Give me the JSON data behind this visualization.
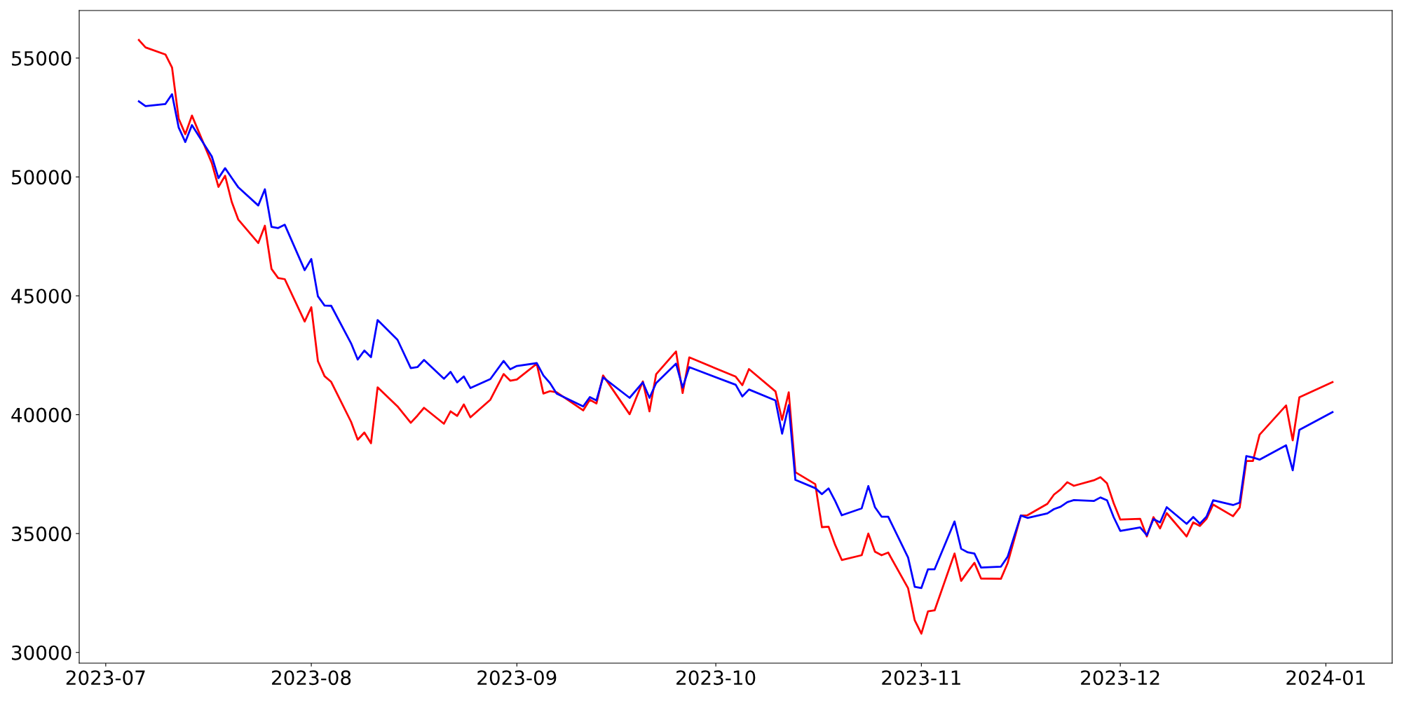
{
  "chart_data": {
    "type": "line",
    "x": [
      "2023-07-06",
      "2023-07-07",
      "2023-07-10",
      "2023-07-11",
      "2023-07-12",
      "2023-07-13",
      "2023-07-14",
      "2023-07-17",
      "2023-07-18",
      "2023-07-19",
      "2023-07-20",
      "2023-07-21",
      "2023-07-24",
      "2023-07-25",
      "2023-07-26",
      "2023-07-27",
      "2023-07-28",
      "2023-07-31",
      "2023-08-01",
      "2023-08-02",
      "2023-08-03",
      "2023-08-04",
      "2023-08-07",
      "2023-08-08",
      "2023-08-09",
      "2023-08-10",
      "2023-08-11",
      "2023-08-14",
      "2023-08-16",
      "2023-08-17",
      "2023-08-18",
      "2023-08-21",
      "2023-08-22",
      "2023-08-23",
      "2023-08-24",
      "2023-08-25",
      "2023-08-28",
      "2023-08-30",
      "2023-08-31",
      "2023-09-01",
      "2023-09-04",
      "2023-09-05",
      "2023-09-06",
      "2023-09-07",
      "2023-09-11",
      "2023-09-12",
      "2023-09-13",
      "2023-09-14",
      "2023-09-18",
      "2023-09-20",
      "2023-09-21",
      "2023-09-22",
      "2023-09-25",
      "2023-09-26",
      "2023-09-27",
      "2023-10-04",
      "2023-10-05",
      "2023-10-06",
      "2023-10-10",
      "2023-10-11",
      "2023-10-12",
      "2023-10-13",
      "2023-10-16",
      "2023-10-17",
      "2023-10-18",
      "2023-10-19",
      "2023-10-20",
      "2023-10-23",
      "2023-10-24",
      "2023-10-25",
      "2023-10-26",
      "2023-10-27",
      "2023-10-30",
      "2023-10-31",
      "2023-11-01",
      "2023-11-02",
      "2023-11-03",
      "2023-11-06",
      "2023-11-07",
      "2023-11-08",
      "2023-11-09",
      "2023-11-10",
      "2023-11-13",
      "2023-11-14",
      "2023-11-16",
      "2023-11-17",
      "2023-11-20",
      "2023-11-21",
      "2023-11-22",
      "2023-11-23",
      "2023-11-24",
      "2023-11-27",
      "2023-11-28",
      "2023-11-29",
      "2023-11-30",
      "2023-12-01",
      "2023-12-04",
      "2023-12-05",
      "2023-12-06",
      "2023-12-07",
      "2023-12-08",
      "2023-12-11",
      "2023-12-12",
      "2023-12-13",
      "2023-12-14",
      "2023-12-15",
      "2023-12-18",
      "2023-12-19",
      "2023-12-20",
      "2023-12-21",
      "2023-12-22",
      "2023-12-26",
      "2023-12-27",
      "2023-12-28",
      "2024-01-02"
    ],
    "series": [
      {
        "color": "#ff0000",
        "values": [
          55760,
          55450,
          55150,
          54600,
          52450,
          51800,
          52580,
          50580,
          49580,
          50050,
          48950,
          48200,
          47220,
          47950,
          46130,
          45750,
          45700,
          43920,
          44520,
          42250,
          41620,
          41380,
          39700,
          38950,
          39250,
          38800,
          41150,
          40350,
          39660,
          39960,
          40290,
          39620,
          40140,
          39950,
          40430,
          39890,
          40630,
          41710,
          41430,
          41480,
          42140,
          40890,
          40990,
          40940,
          40180,
          40630,
          40470,
          41650,
          40020,
          41400,
          40140,
          41700,
          42660,
          40910,
          42410,
          41600,
          41240,
          41920,
          40980,
          39780,
          40940,
          37580,
          37080,
          35270,
          35290,
          34520,
          33890,
          34090,
          35000,
          34240,
          34090,
          34200,
          32700,
          31350,
          30790,
          31730,
          31770,
          34160,
          33010,
          33400,
          33770,
          33110,
          33100,
          33750,
          35760,
          35770,
          36250,
          36640,
          36860,
          37160,
          37010,
          37240,
          37370,
          37110,
          36280,
          35590,
          35620,
          34880,
          35690,
          35220,
          35860,
          34880,
          35470,
          35320,
          35620,
          36220,
          35730,
          36090,
          38050,
          38050,
          39160,
          40390,
          38920,
          40730,
          41370
        ]
      },
      {
        "color": "#0000ff",
        "values": [
          53180,
          52980,
          53070,
          53480,
          52080,
          51470,
          52180,
          50860,
          49950,
          50370,
          49960,
          49560,
          48800,
          49480,
          47900,
          47850,
          47990,
          46080,
          46550,
          44980,
          44590,
          44580,
          43000,
          42320,
          42700,
          42420,
          43980,
          43150,
          41960,
          42000,
          42300,
          41510,
          41800,
          41360,
          41610,
          41120,
          41500,
          42260,
          41910,
          42050,
          42170,
          41650,
          41330,
          40890,
          40350,
          40740,
          40600,
          41570,
          40710,
          41360,
          40710,
          41330,
          42150,
          41140,
          42000,
          41260,
          40770,
          41060,
          40600,
          39200,
          40400,
          37260,
          36910,
          36660,
          36900,
          36370,
          35770,
          36060,
          37000,
          36110,
          35710,
          35710,
          33990,
          32760,
          32710,
          33500,
          33500,
          35510,
          34360,
          34210,
          34160,
          33570,
          33610,
          34020,
          35760,
          35660,
          35850,
          36030,
          36130,
          36320,
          36410,
          36370,
          36520,
          36400,
          35690,
          35110,
          35260,
          34930,
          35610,
          35470,
          36110,
          35410,
          35700,
          35420,
          35710,
          36400,
          36200,
          36300,
          38260,
          38200,
          38110,
          38710,
          37660,
          39360,
          40110
        ]
      }
    ],
    "xlim": [
      "2023-06-27",
      "2024-01-11"
    ],
    "xticks": [
      "2023-07",
      "2023-08",
      "2023-09",
      "2023-10",
      "2023-11",
      "2023-12",
      "2024-01"
    ],
    "ylim": [
      29550,
      57000
    ],
    "yticks": [
      30000,
      35000,
      40000,
      45000,
      50000,
      55000
    ],
    "grid": false,
    "marker": "none",
    "line_style": "solid"
  }
}
